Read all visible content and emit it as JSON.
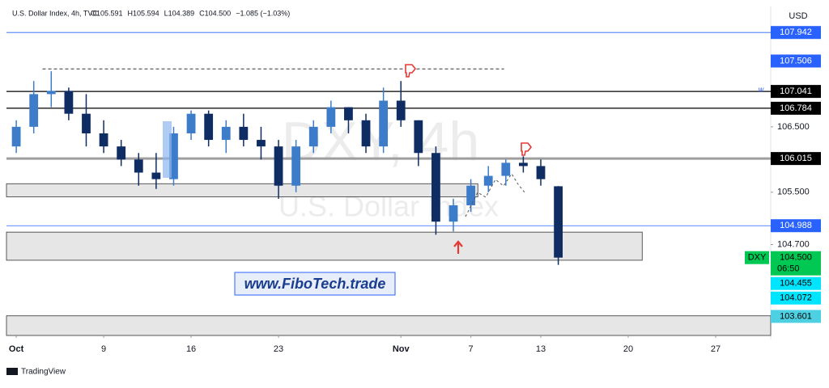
{
  "header": {
    "name": "U.S. Dollar Index, 4h, TVC",
    "stats": [
      "O105.591",
      "H105.594",
      "L104.389",
      "C104.500",
      "−1.085 (−1.03%)"
    ],
    "currency": "USD"
  },
  "watermark": {
    "symbol": "DXY, 4h",
    "name": "U.S. Dollar Index"
  },
  "banner": "www.FiboTech.trade",
  "brand": "TradingView",
  "line_marker": "w",
  "chart_data": {
    "type": "candlestick",
    "up_color": "#3d7cc9",
    "down_color": "#0f2d63",
    "xlim": [
      -0.56,
      43.15
    ],
    "xticks": [
      {
        "value": 0,
        "label": "Oct"
      },
      {
        "value": 5,
        "label": "9"
      },
      {
        "value": 10,
        "label": "16"
      },
      {
        "value": 15,
        "label": "23"
      },
      {
        "value": 22,
        "label": "Nov"
      },
      {
        "value": 26,
        "label": "7"
      },
      {
        "value": 30,
        "label": "13"
      },
      {
        "value": 35,
        "label": "20"
      },
      {
        "value": 40,
        "label": "27"
      }
    ],
    "ylim": [
      103.31,
      108.34
    ],
    "yticks": [
      {
        "value": 106.5,
        "label": "106.500"
      },
      {
        "value": 105.5,
        "label": "105.500"
      },
      {
        "value": 104.7,
        "label": "104.700"
      }
    ],
    "x": [
      0,
      1,
      2,
      3,
      4,
      5,
      6,
      7,
      8,
      9,
      10,
      11,
      12,
      13,
      14,
      15,
      16,
      17,
      18,
      19,
      20,
      21,
      22,
      23,
      24,
      25,
      26,
      27,
      28,
      29,
      30,
      31
    ],
    "open": [
      106.2,
      106.5,
      107.0,
      107.05,
      106.7,
      106.4,
      106.2,
      106.0,
      105.8,
      105.7,
      106.4,
      106.7,
      106.3,
      106.5,
      106.3,
      106.2,
      105.6,
      106.2,
      106.5,
      106.8,
      106.6,
      106.2,
      106.9,
      106.6,
      106.1,
      105.05,
      105.3,
      105.6,
      105.75,
      105.95,
      105.9,
      105.591
    ],
    "high": [
      106.6,
      107.2,
      107.35,
      107.1,
      107.0,
      106.6,
      106.3,
      106.1,
      106.1,
      106.5,
      106.75,
      106.75,
      106.6,
      106.7,
      106.5,
      106.3,
      106.3,
      106.6,
      106.9,
      106.8,
      106.7,
      107.1,
      107.2,
      106.6,
      106.2,
      105.4,
      105.7,
      105.9,
      106.0,
      106.05,
      106.0,
      105.594
    ],
    "low": [
      106.1,
      106.4,
      106.8,
      106.6,
      106.2,
      106.1,
      105.9,
      105.6,
      105.55,
      105.6,
      106.3,
      106.2,
      106.1,
      106.2,
      106.0,
      105.4,
      105.5,
      106.1,
      106.4,
      106.4,
      106.1,
      106.1,
      106.5,
      105.9,
      104.85,
      104.9,
      105.2,
      105.5,
      105.6,
      105.8,
      105.6,
      104.389
    ],
    "close": [
      106.5,
      107.0,
      107.05,
      106.7,
      106.4,
      106.2,
      106.0,
      105.8,
      105.7,
      106.4,
      106.7,
      106.3,
      106.5,
      106.3,
      106.2,
      105.6,
      106.2,
      106.5,
      106.8,
      106.6,
      106.2,
      106.9,
      106.6,
      106.1,
      105.05,
      105.3,
      105.6,
      105.75,
      105.95,
      105.9,
      105.7,
      104.5
    ],
    "levels": [
      {
        "value": 107.942,
        "label": "107.942",
        "color": "#2962ff",
        "line": true
      },
      {
        "value": 107.506,
        "label": "107.506",
        "color": "#2962ff",
        "line": false
      },
      {
        "value": 107.041,
        "label": "107.041",
        "color": "#000000",
        "line": true
      },
      {
        "value": 106.784,
        "label": "106.784",
        "color": "#000000",
        "line": true
      },
      {
        "value": 106.015,
        "label": "106.015",
        "color": "#9e9e9e",
        "line": true
      },
      {
        "value": 104.988,
        "label": "104.988",
        "color": "#2962ff",
        "line": true
      },
      {
        "value": 104.5,
        "label": "104.500",
        "color": "#00c853",
        "line": false,
        "tag": "DXY",
        "countdown": "06:50"
      },
      {
        "value": 104.455,
        "label": "104.455",
        "color": "#00e5ff",
        "line": false
      },
      {
        "value": 104.072,
        "label": "104.072",
        "color": "#00e5ff",
        "line": false
      },
      {
        "value": 103.601,
        "label": "103.601",
        "color": "#4dd0e1",
        "line": false
      }
    ],
    "zones": [
      {
        "from": 105.63,
        "to": 105.43,
        "x_end": 26.4
      },
      {
        "from": 104.89,
        "to": 104.46,
        "x_end": 35.8
      },
      {
        "from": 103.61,
        "to": 103.31,
        "x_end": 43.15
      }
    ],
    "dashed_level": {
      "value": 107.386,
      "x_start": 1.5,
      "x_end": 27.9
    }
  }
}
